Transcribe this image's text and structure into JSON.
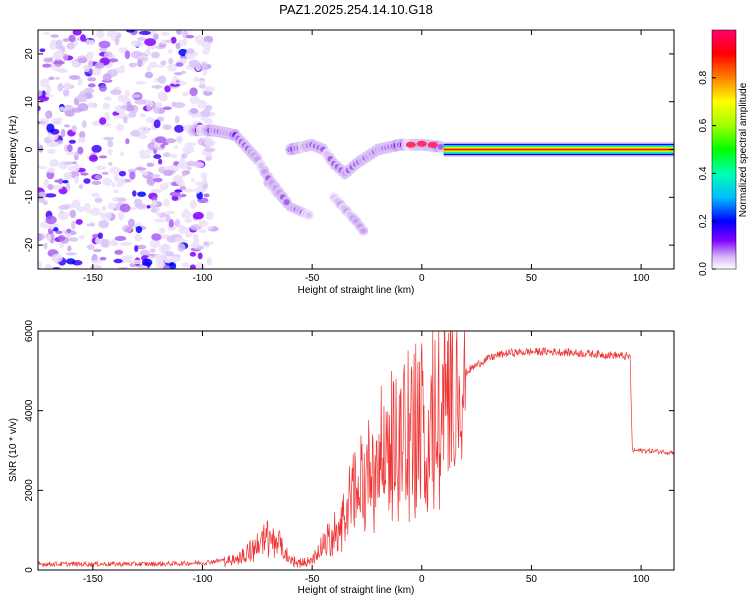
{
  "title": "PAZ1.2025.254.14.10.G18",
  "chart_data": [
    {
      "type": "heatmap",
      "name": "spectrogram",
      "xlabel": "Height of straight line (km)",
      "ylabel": "Frequency (Hz)",
      "xlim": [
        -175,
        115
      ],
      "ylim": [
        -25,
        25
      ],
      "xticks": [
        -150,
        -100,
        -50,
        0,
        50,
        100
      ],
      "yticks": [
        -20,
        -10,
        0,
        10,
        20
      ],
      "colorbar": {
        "label": "Normalized spectral amplitude",
        "range": [
          0,
          1
        ],
        "ticks": [
          0.0,
          0.2,
          0.4,
          0.6,
          0.8
        ],
        "colors": [
          "#ffffff",
          "#c8a0f0",
          "#8000ff",
          "#0000ff",
          "#00c0ff",
          "#00ffa0",
          "#00ff00",
          "#a0ff00",
          "#ffff00",
          "#ff8000",
          "#ff0000",
          "#ff0080"
        ]
      },
      "features": [
        {
          "name": "noise region",
          "x_range": [
            -175,
            -95
          ],
          "freq_range": [
            -25,
            25
          ],
          "amplitude": 0.15
        },
        {
          "name": "main tone",
          "points": [
            [
              -105,
              4
            ],
            [
              -95,
              4
            ],
            [
              -85,
              3
            ],
            [
              -75,
              -2
            ],
            [
              -70,
              -6
            ],
            [
              -65,
              -9
            ],
            [
              -60,
              -12
            ]
          ],
          "amplitude": 0.3
        },
        {
          "name": "middle feature",
          "points": [
            [
              -60,
              0
            ],
            [
              -50,
              1
            ],
            [
              -45,
              0
            ],
            [
              -40,
              -3
            ],
            [
              -35,
              -5
            ],
            [
              -30,
              -3
            ],
            [
              -20,
              0
            ],
            [
              -10,
              1
            ],
            [
              0,
              1
            ],
            [
              10,
              0.5
            ]
          ],
          "amplitude": 0.3
        },
        {
          "name": "secondary tone",
          "points": [
            [
              -70,
              -7
            ],
            [
              -60,
              -12
            ],
            [
              -50,
              -14
            ]
          ],
          "amplitude": 0.25
        },
        {
          "name": "tertiary tone",
          "points": [
            [
              -40,
              -10
            ],
            [
              -30,
              -15
            ],
            [
              -25,
              -18
            ]
          ],
          "amplitude": 0.2
        },
        {
          "name": "carrier line",
          "points": [
            [
              10,
              0
            ],
            [
              115,
              0
            ]
          ],
          "amplitude": 1.0
        }
      ]
    },
    {
      "type": "line",
      "name": "snr",
      "xlabel": "Height of straight line (km)",
      "ylabel": "SNR (10 * v/v)",
      "xlim": [
        -175,
        115
      ],
      "ylim": [
        0,
        6000
      ],
      "xticks": [
        -150,
        -100,
        -50,
        0,
        50,
        100
      ],
      "yticks": [
        0,
        2000,
        4000,
        6000
      ],
      "color": "#ee3333",
      "series": [
        {
          "name": "SNR envelope",
          "x": [
            -175,
            -150,
            -120,
            -100,
            -90,
            -80,
            -75,
            -70,
            -65,
            -60,
            -55,
            -50,
            -45,
            -40,
            -35,
            -30,
            -25,
            -20,
            -15,
            -10,
            -5,
            0,
            5,
            10,
            15,
            20,
            25,
            30,
            35,
            40,
            50,
            60,
            70,
            80,
            90,
            95,
            96,
            100,
            110,
            115
          ],
          "y": [
            150,
            150,
            150,
            180,
            250,
            450,
            650,
            900,
            700,
            300,
            200,
            250,
            700,
            1000,
            1600,
            2200,
            2600,
            3100,
            3400,
            3600,
            3900,
            4100,
            4200,
            4450,
            4700,
            4950,
            5150,
            5300,
            5400,
            5450,
            5480,
            5480,
            5450,
            5420,
            5380,
            5350,
            3000,
            3000,
            2970,
            2950
          ]
        }
      ],
      "peak": {
        "x": 5,
        "y": 6000
      }
    }
  ]
}
